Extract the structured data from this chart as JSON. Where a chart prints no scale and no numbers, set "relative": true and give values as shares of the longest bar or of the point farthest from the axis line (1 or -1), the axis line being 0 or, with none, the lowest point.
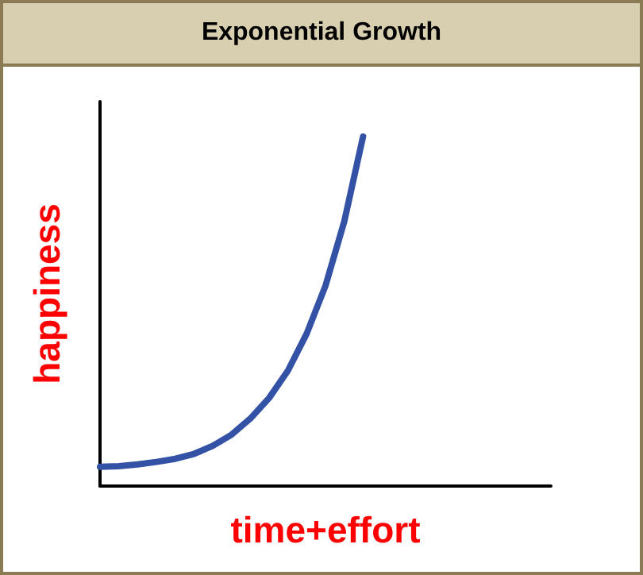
{
  "chart_data": {
    "type": "line",
    "title": "Exponential Growth",
    "xlabel": "time+effort",
    "ylabel": "happiness",
    "relative": true,
    "marker": "none",
    "categories": [
      null,
      null,
      null,
      null,
      null,
      null,
      null,
      null,
      null,
      null,
      null,
      null,
      null,
      null,
      null,
      null,
      null,
      null,
      null,
      null,
      null,
      null,
      null,
      null,
      null
    ],
    "series": [
      {
        "color": "#3352a6",
        "values": [
          0.055,
          0.057,
          0.062,
          0.069,
          0.078,
          0.092,
          0.115,
          0.147,
          0.193,
          0.252,
          0.33,
          0.436,
          0.573,
          0.757,
          1,
          null,
          null,
          null,
          null,
          null,
          null,
          null,
          null,
          null,
          null
        ]
      }
    ]
  }
}
